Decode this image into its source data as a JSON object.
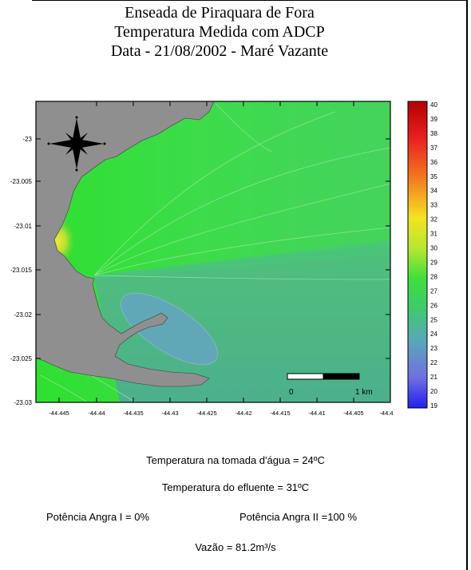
{
  "header": {
    "title_line1": "Enseada de Piraquara de Fora",
    "title_line2": "Temperatura Medida com ADCP",
    "title_line3": "Data - 21/08/2002 - Maré Vazante"
  },
  "map": {
    "y_ticks": [
      "-23",
      "-23.005",
      "-23.01",
      "-23.015",
      "-23.02",
      "-23.025",
      "-23.03"
    ],
    "x_ticks": [
      "-44.445",
      "-44.44",
      "-44.435",
      "-44.43",
      "-44.425",
      "-44.42",
      "-44.415",
      "-44.41",
      "-44.405",
      "-44.4"
    ],
    "colorbar_ticks": [
      "40",
      "39",
      "38",
      "37",
      "36",
      "35",
      "34",
      "33",
      "32",
      "31",
      "30",
      "29",
      "28",
      "27",
      "26",
      "25",
      "24",
      "23",
      "22",
      "21",
      "20",
      "19"
    ],
    "scalebar_start": "0",
    "scalebar_end": "1 km",
    "colors": {
      "land": "#8f8f8f",
      "water_warm": "#3de03d",
      "water_cool": "#4db58a",
      "plume": "#5fa8b5"
    }
  },
  "notes": {
    "intake_temp": "Temperatura na tomada d'água = 24ºC",
    "effluent_temp": "Temperatura do efluente = 31ºC",
    "power_angra1": "Potência Angra I  = 0%",
    "power_angra2": "Potência Angra II =100 %",
    "flow": "Vazão = 81.2m³/s"
  }
}
